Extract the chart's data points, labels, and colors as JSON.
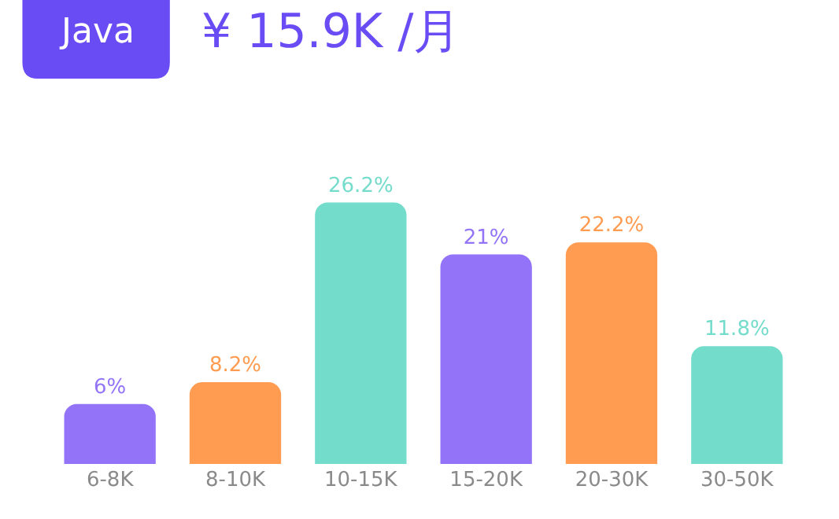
{
  "chart_data": {
    "type": "bar",
    "title": "Java",
    "subtitle": "¥ 15.9K /月",
    "categories": [
      "6-8K",
      "8-10K",
      "10-15K",
      "15-20K",
      "20-30K",
      "30-50K"
    ],
    "values": [
      6,
      8.2,
      26.2,
      21,
      22.2,
      11.8
    ],
    "value_labels": [
      "6%",
      "8.2%",
      "26.2%",
      "21%",
      "22.2%",
      "11.8%"
    ],
    "colors": [
      "#9373f7",
      "#ff9c52",
      "#74dccb",
      "#9373f7",
      "#ff9c52",
      "#74dccb"
    ],
    "tick_labels": "x"
  }
}
